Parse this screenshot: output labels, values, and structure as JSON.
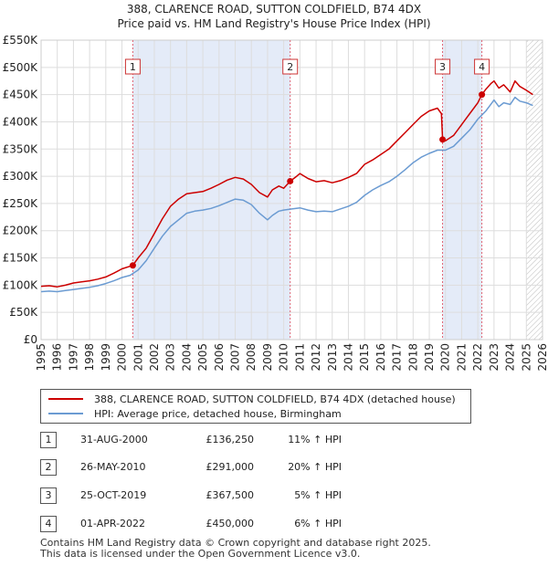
{
  "chart_data": {
    "type": "line",
    "title": "388, CLARENCE ROAD, SUTTON COLDFIELD, B74 4DX",
    "subtitle": "Price paid vs. HM Land Registry's House Price Index (HPI)",
    "xlabel": "",
    "ylabel": "",
    "xlim": [
      1995,
      2026
    ],
    "ylim": [
      0,
      550000
    ],
    "x_ticks": [
      "1995",
      "1996",
      "1997",
      "1998",
      "1999",
      "2000",
      "2001",
      "2002",
      "2003",
      "2004",
      "2005",
      "2006",
      "2007",
      "2008",
      "2009",
      "2010",
      "2011",
      "2012",
      "2013",
      "2014",
      "2015",
      "2016",
      "2017",
      "2018",
      "2019",
      "2020",
      "2021",
      "2022",
      "2023",
      "2024",
      "2025",
      "2026"
    ],
    "y_ticks": [
      {
        "value": 0,
        "label": "£0"
      },
      {
        "value": 50000,
        "label": "£50K"
      },
      {
        "value": 100000,
        "label": "£100K"
      },
      {
        "value": 150000,
        "label": "£150K"
      },
      {
        "value": 200000,
        "label": "£200K"
      },
      {
        "value": 250000,
        "label": "£250K"
      },
      {
        "value": 300000,
        "label": "£300K"
      },
      {
        "value": 350000,
        "label": "£350K"
      },
      {
        "value": 400000,
        "label": "£400K"
      },
      {
        "value": 450000,
        "label": "£450K"
      },
      {
        "value": 500000,
        "label": "£500K"
      },
      {
        "value": 550000,
        "label": "£550K"
      }
    ],
    "shaded_ranges": [
      [
        2000.67,
        2010.4
      ],
      [
        2019.82,
        2022.25
      ]
    ],
    "hatched_range": [
      2025.0,
      2026
    ],
    "series": [
      {
        "name": "388, CLARENCE ROAD, SUTTON COLDFIELD, B74 4DX (detached house)",
        "color": "#cc0000",
        "x": [
          1995,
          1995.5,
          1996,
          1996.5,
          1997,
          1997.5,
          1998,
          1998.5,
          1999,
          1999.5,
          2000,
          2000.67,
          2001,
          2001.5,
          2002,
          2002.5,
          2003,
          2003.5,
          2004,
          2004.5,
          2005,
          2005.5,
          2006,
          2006.5,
          2007,
          2007.5,
          2008,
          2008.5,
          2009,
          2009.3,
          2009.7,
          2010,
          2010.4,
          2010.8,
          2011,
          2011.5,
          2012,
          2012.5,
          2013,
          2013.5,
          2014,
          2014.5,
          2015,
          2015.5,
          2016,
          2016.5,
          2017,
          2017.5,
          2018,
          2018.5,
          2019,
          2019.5,
          2019.75,
          2019.82,
          2020,
          2020.5,
          2021,
          2021.5,
          2022,
          2022.25,
          2022.5,
          2022.8,
          2023,
          2023.3,
          2023.6,
          2024,
          2024.3,
          2024.6,
          2025,
          2025.4
        ],
        "values": [
          98000,
          99000,
          97000,
          100000,
          104000,
          106000,
          108000,
          111000,
          115000,
          122000,
          130000,
          136250,
          150000,
          168000,
          195000,
          222000,
          245000,
          258000,
          268000,
          270000,
          272000,
          278000,
          285000,
          293000,
          298000,
          295000,
          285000,
          270000,
          262000,
          275000,
          282000,
          278000,
          291000,
          300000,
          305000,
          296000,
          290000,
          292000,
          288000,
          292000,
          298000,
          305000,
          322000,
          330000,
          340000,
          350000,
          365000,
          380000,
          395000,
          410000,
          420000,
          425000,
          415000,
          367500,
          365000,
          375000,
          395000,
          415000,
          435000,
          450000,
          460000,
          470000,
          475000,
          462000,
          468000,
          455000,
          475000,
          465000,
          458000,
          450000
        ]
      },
      {
        "name": "HPI: Average price, detached house, Birmingham",
        "color": "#6b9bd2",
        "x": [
          1995,
          1995.5,
          1996,
          1996.5,
          1997,
          1997.5,
          1998,
          1998.5,
          1999,
          1999.5,
          2000,
          2000.5,
          2001,
          2001.5,
          2002,
          2002.5,
          2003,
          2003.5,
          2004,
          2004.5,
          2005,
          2005.5,
          2006,
          2006.5,
          2007,
          2007.5,
          2008,
          2008.5,
          2009,
          2009.3,
          2009.7,
          2010,
          2010.5,
          2011,
          2011.5,
          2012,
          2012.5,
          2013,
          2013.5,
          2014,
          2014.5,
          2015,
          2015.5,
          2016,
          2016.5,
          2017,
          2017.5,
          2018,
          2018.5,
          2019,
          2019.5,
          2020,
          2020.5,
          2021,
          2021.5,
          2022,
          2022.5,
          2022.8,
          2023,
          2023.3,
          2023.6,
          2024,
          2024.3,
          2024.6,
          2025,
          2025.4
        ],
        "values": [
          88000,
          89000,
          88000,
          90000,
          92000,
          94000,
          96000,
          99000,
          103000,
          108000,
          114000,
          118000,
          128000,
          145000,
          168000,
          190000,
          208000,
          220000,
          232000,
          236000,
          238000,
          241000,
          246000,
          252000,
          258000,
          256000,
          248000,
          232000,
          220000,
          228000,
          236000,
          238000,
          240000,
          242000,
          238000,
          235000,
          236000,
          235000,
          240000,
          245000,
          252000,
          265000,
          275000,
          283000,
          290000,
          300000,
          312000,
          325000,
          335000,
          342000,
          348000,
          348000,
          355000,
          370000,
          385000,
          405000,
          420000,
          432000,
          440000,
          428000,
          435000,
          432000,
          445000,
          438000,
          435000,
          430000
        ]
      }
    ],
    "markers": [
      {
        "label": "1",
        "x": 2000.67,
        "value": 136250
      },
      {
        "label": "2",
        "x": 2010.4,
        "value": 291000
      },
      {
        "label": "3",
        "x": 2019.82,
        "value": 367500
      },
      {
        "label": "4",
        "x": 2022.25,
        "value": 450000
      }
    ],
    "legend": {
      "placement": "bottom",
      "entries": [
        {
          "label": "388, CLARENCE ROAD, SUTTON COLDFIELD, B74 4DX (detached house)",
          "color": "#cc0000"
        },
        {
          "label": "HPI: Average price, detached house, Birmingham",
          "color": "#6b9bd2"
        }
      ]
    }
  },
  "sales": [
    {
      "num": "1",
      "date": "31-AUG-2000",
      "price": "£136,250",
      "hpi": "11% ↑ HPI"
    },
    {
      "num": "2",
      "date": "26-MAY-2010",
      "price": "£291,000",
      "hpi": "20% ↑ HPI"
    },
    {
      "num": "3",
      "date": "25-OCT-2019",
      "price": "£367,500",
      "hpi": "5% ↑ HPI"
    },
    {
      "num": "4",
      "date": "01-APR-2022",
      "price": "£450,000",
      "hpi": "6% ↑ HPI"
    }
  ],
  "footer": {
    "line1": "Contains HM Land Registry data © Crown copyright and database right 2025.",
    "line2": "This data is licensed under the Open Government Licence v3.0."
  }
}
